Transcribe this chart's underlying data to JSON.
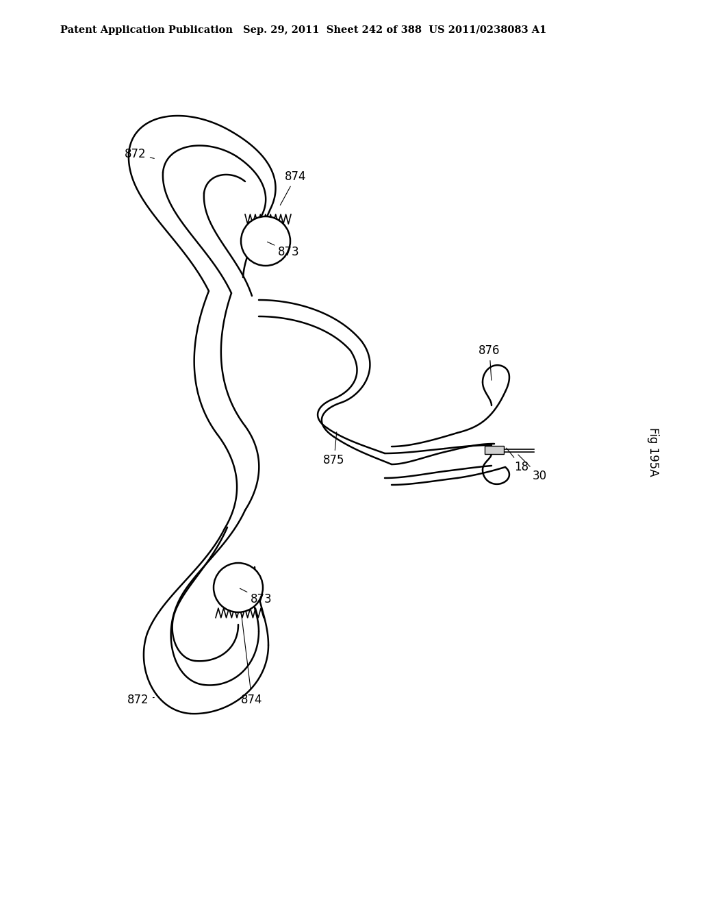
{
  "title_line1": "Patent Application Publication",
  "title_line2": "Sep. 29, 2011  Sheet 242 of 388  US 2011/0238083 A1",
  "fig_label": "Fig 195A",
  "line_color": "#000000",
  "bg_color": "#ffffff",
  "line_width": 1.8
}
